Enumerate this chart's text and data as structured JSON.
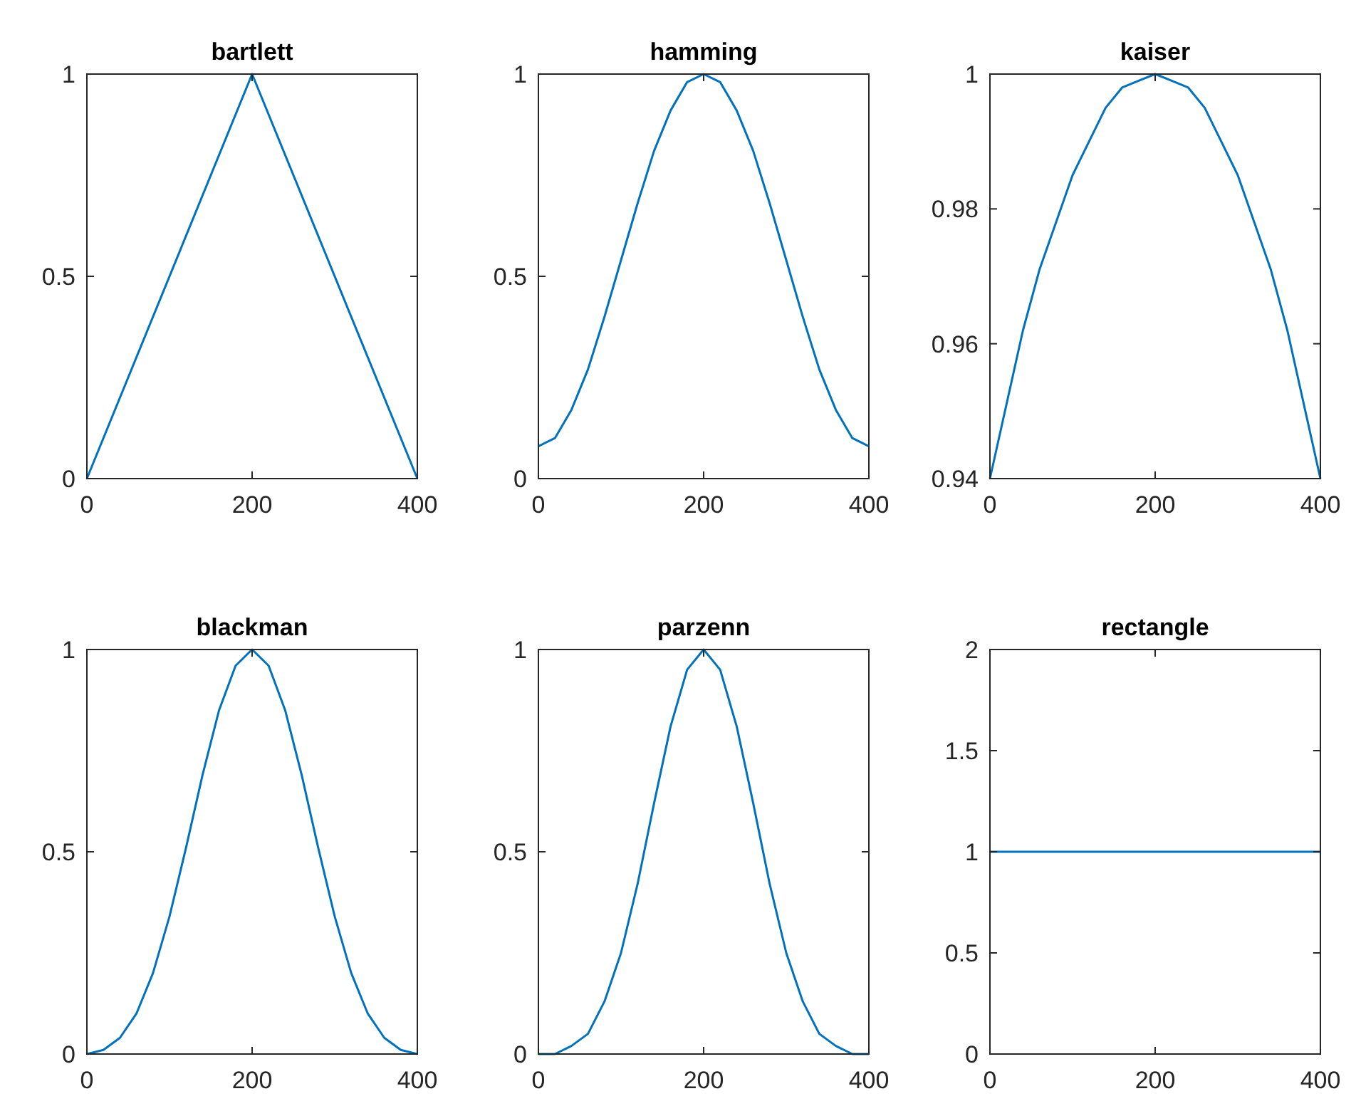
{
  "chart_data": [
    {
      "type": "line",
      "title": "bartlett",
      "x": [
        0,
        200,
        400
      ],
      "values": [
        0,
        1,
        0
      ],
      "color": "#0072bd",
      "xlim": [
        0,
        400
      ],
      "xticks": [
        0,
        200,
        400
      ],
      "ylim": [
        0,
        1
      ],
      "yticks": [
        0,
        0.5,
        1
      ]
    },
    {
      "type": "line",
      "title": "hamming",
      "x": [
        0,
        20,
        40,
        60,
        80,
        100,
        120,
        140,
        160,
        180,
        200,
        220,
        240,
        260,
        280,
        300,
        320,
        340,
        360,
        380,
        400
      ],
      "values": [
        0.08,
        0.1,
        0.17,
        0.27,
        0.4,
        0.54,
        0.68,
        0.81,
        0.91,
        0.98,
        1,
        0.98,
        0.91,
        0.81,
        0.68,
        0.54,
        0.4,
        0.27,
        0.17,
        0.1,
        0.08
      ],
      "color": "#0072bd",
      "xlim": [
        0,
        400
      ],
      "xticks": [
        0,
        200,
        400
      ],
      "ylim": [
        0,
        1
      ],
      "yticks": [
        0,
        0.5,
        1
      ]
    },
    {
      "type": "line",
      "title": "kaiser",
      "x": [
        0,
        20,
        40,
        60,
        80,
        100,
        120,
        140,
        160,
        180,
        200,
        220,
        240,
        260,
        280,
        300,
        320,
        340,
        360,
        380,
        400
      ],
      "values": [
        0.94,
        0.951,
        0.962,
        0.971,
        0.978,
        0.985,
        0.99,
        0.995,
        0.998,
        0.999,
        1,
        0.999,
        0.998,
        0.995,
        0.99,
        0.985,
        0.978,
        0.971,
        0.962,
        0.951,
        0.94
      ],
      "color": "#0072bd",
      "xlim": [
        0,
        400
      ],
      "xticks": [
        0,
        200,
        400
      ],
      "ylim": [
        0.94,
        1
      ],
      "yticks": [
        0.94,
        0.96,
        0.98,
        1
      ]
    },
    {
      "type": "line",
      "title": "blackman",
      "x": [
        0,
        20,
        40,
        60,
        80,
        100,
        120,
        140,
        160,
        180,
        200,
        220,
        240,
        260,
        280,
        300,
        320,
        340,
        360,
        380,
        400
      ],
      "values": [
        0,
        0.01,
        0.04,
        0.1,
        0.2,
        0.34,
        0.51,
        0.69,
        0.85,
        0.96,
        1,
        0.96,
        0.85,
        0.69,
        0.51,
        0.34,
        0.2,
        0.1,
        0.04,
        0.01,
        0
      ],
      "color": "#0072bd",
      "xlim": [
        0,
        400
      ],
      "xticks": [
        0,
        200,
        400
      ],
      "ylim": [
        0,
        1
      ],
      "yticks": [
        0,
        0.5,
        1
      ]
    },
    {
      "type": "line",
      "title": "parzenn",
      "x": [
        0,
        20,
        40,
        60,
        80,
        100,
        120,
        140,
        160,
        180,
        200,
        220,
        240,
        260,
        280,
        300,
        320,
        340,
        360,
        380,
        400
      ],
      "values": [
        0,
        0,
        0.02,
        0.05,
        0.13,
        0.25,
        0.42,
        0.62,
        0.81,
        0.95,
        1,
        0.95,
        0.81,
        0.62,
        0.42,
        0.25,
        0.13,
        0.05,
        0.02,
        0,
        0
      ],
      "color": "#0072bd",
      "xlim": [
        0,
        400
      ],
      "xticks": [
        0,
        200,
        400
      ],
      "ylim": [
        0,
        1
      ],
      "yticks": [
        0,
        0.5,
        1
      ]
    },
    {
      "type": "line",
      "title": "rectangle",
      "x": [
        0,
        400
      ],
      "values": [
        1,
        1
      ],
      "color": "#0072bd",
      "xlim": [
        0,
        400
      ],
      "xticks": [
        0,
        200,
        400
      ],
      "ylim": [
        0,
        2
      ],
      "yticks": [
        0,
        0.5,
        1,
        1.5,
        2
      ]
    }
  ]
}
